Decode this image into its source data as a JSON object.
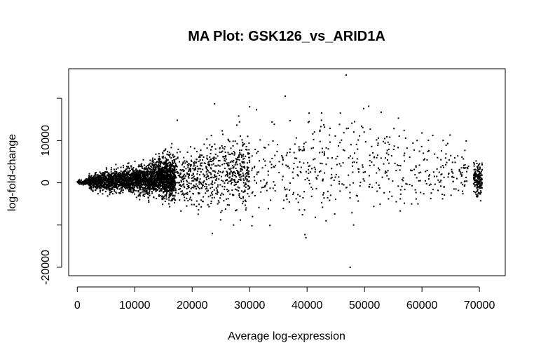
{
  "chart_data": {
    "type": "scatter",
    "title": "MA Plot: GSK126_vs_ARID1A",
    "xlabel": "Average log-expression",
    "ylabel": "log-fold-change",
    "xlim": [
      -1500,
      74500
    ],
    "ylim": [
      -22000,
      27000
    ],
    "xticks": [
      0,
      10000,
      20000,
      30000,
      40000,
      50000,
      60000,
      70000
    ],
    "xtick_labels": [
      "0",
      "10000",
      "20000",
      "30000",
      "40000",
      "50000",
      "60000",
      "70000"
    ],
    "yticks": [
      -20000,
      -10000,
      0,
      10000,
      20000
    ],
    "ytick_labels": [
      "-20000",
      "",
      "0",
      "10000",
      ""
    ],
    "grid": false,
    "legend": "none",
    "marker_color": "#000000",
    "points_x": [
      46800,
      36200,
      23900,
      31200,
      30000,
      17400,
      28100,
      45800,
      52900,
      55900,
      40200,
      42400,
      44000,
      47800,
      49500,
      51000,
      56900,
      60000,
      64900,
      67700,
      48100,
      47500,
      39800,
      43300,
      30500,
      25000,
      27200,
      23500,
      58200,
      59300,
      31700,
      33300,
      34500,
      35600,
      37000,
      37500,
      38600,
      41100,
      43900,
      45200,
      46300,
      48900,
      50200,
      51700,
      53600,
      54400,
      55300,
      57400,
      58800,
      61200,
      62200,
      63300,
      64200,
      65700,
      66500,
      68100,
      69300,
      36500,
      38400,
      40800,
      42900,
      44700,
      46900,
      49800,
      52200,
      54900,
      57000,
      60300,
      62800,
      67400,
      32500,
      34100,
      35800,
      39500,
      41600,
      44200,
      47200,
      50800,
      53100,
      56300,
      59700,
      63800,
      66900,
      21700,
      24800,
      26700,
      28900,
      22600,
      25600,
      27800,
      29600,
      20900,
      23300,
      26200,
      28500,
      30800
    ],
    "points_y": [
      25500,
      20500,
      18700,
      17300,
      18000,
      14800,
      15800,
      16500,
      16700,
      15300,
      14300,
      13300,
      12900,
      14100,
      13400,
      12700,
      12400,
      11800,
      11300,
      9900,
      -10000,
      -20000,
      -13000,
      -9000,
      -8000,
      -7000,
      -10000,
      -12000,
      -5000,
      -5000,
      5200,
      9000,
      4100,
      6400,
      7200,
      2500,
      8500,
      5500,
      11300,
      4300,
      7800,
      3300,
      9700,
      6100,
      2300,
      10800,
      4600,
      8200,
      1900,
      7600,
      6800,
      3700,
      8900,
      5900,
      2800,
      3900,
      2100,
      -1500,
      -2800,
      -3200,
      -2400,
      600,
      -1100,
      900,
      -2000,
      400,
      -1600,
      -2600,
      -1800,
      300,
      700,
      -1300,
      1500,
      -2100,
      1200,
      -600,
      1800,
      -900,
      1300,
      -2700,
      500,
      -1000,
      1600,
      6500,
      8100,
      4900,
      6700,
      3100,
      5300,
      2900,
      4700,
      3900,
      5600,
      -2100,
      -3700,
      1400
    ],
    "dense_cloud": {
      "x_range": [
        0,
        70500
      ],
      "y_center": 0,
      "description_count": 4000
    }
  }
}
